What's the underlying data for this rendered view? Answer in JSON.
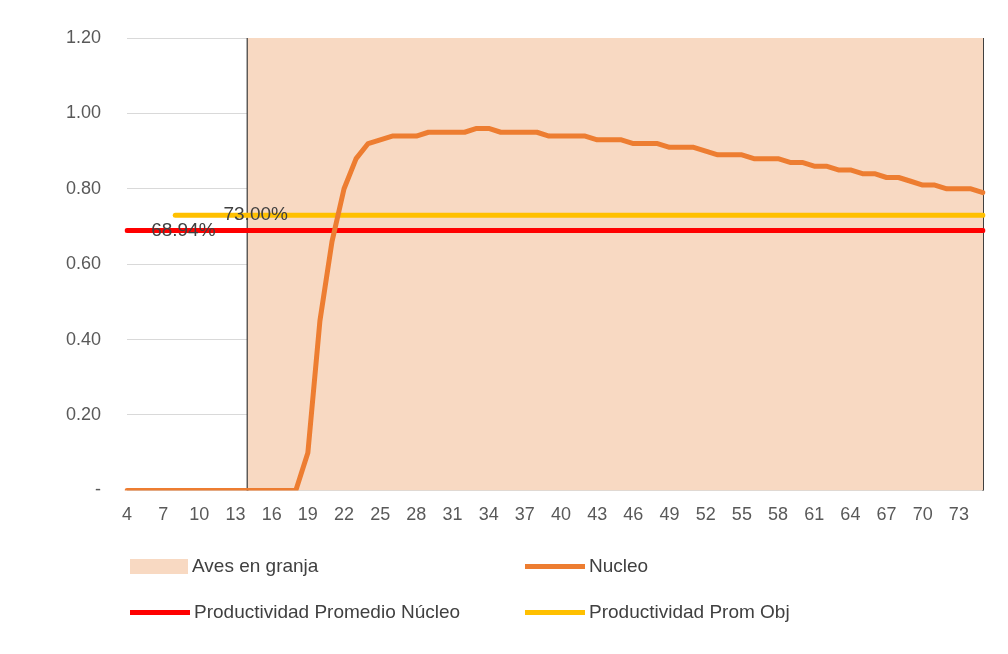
{
  "chart_data": {
    "type": "line",
    "categories": [
      "4",
      null,
      null,
      "7",
      null,
      null,
      "10",
      null,
      null,
      "13",
      null,
      null,
      "16",
      null,
      null,
      "19",
      null,
      null,
      "22",
      null,
      null,
      "25",
      null,
      null,
      "28",
      null,
      null,
      "31",
      null,
      null,
      "34",
      null,
      null,
      "37",
      null,
      null,
      "40",
      null,
      null,
      "43",
      null,
      null,
      "46",
      null,
      null,
      "49",
      null,
      null,
      "52",
      null,
      null,
      "55",
      null,
      null,
      "58",
      null,
      null,
      "61",
      null,
      null,
      "64",
      null,
      null,
      "67",
      null,
      null,
      "70",
      null,
      null,
      "73",
      null,
      null
    ],
    "series": [
      {
        "name": "Aves en granja",
        "type": "area",
        "color": "#f8d9c2",
        "values": [
          null,
          null,
          null,
          null,
          null,
          null,
          null,
          null,
          null,
          null,
          1.2,
          1.2,
          1.2,
          1.2,
          1.2,
          1.2,
          1.2,
          1.2,
          1.2,
          1.2,
          1.2,
          1.2,
          1.2,
          1.2,
          1.2,
          1.2,
          1.2,
          1.2,
          1.2,
          1.2,
          1.2,
          1.2,
          1.2,
          1.2,
          1.2,
          1.2,
          1.2,
          1.2,
          1.2,
          1.2,
          1.2,
          1.2,
          1.2,
          1.2,
          1.2,
          1.2,
          1.2,
          1.2,
          1.2,
          1.2,
          1.2,
          1.2,
          1.2,
          1.2,
          1.2,
          1.2,
          1.2,
          1.2,
          1.2,
          1.2,
          1.2,
          1.2,
          1.2,
          1.2,
          1.2,
          1.2,
          1.2,
          1.2,
          1.2,
          1.2,
          1.2,
          1.2
        ]
      },
      {
        "name": "Nucleo",
        "color": "#ed7d31",
        "values": [
          0,
          0,
          0,
          0,
          0,
          0,
          0,
          0,
          0,
          0,
          0,
          0,
          0,
          0,
          0,
          0.1,
          0.45,
          0.66,
          0.8,
          0.88,
          0.92,
          0.93,
          0.94,
          0.94,
          0.94,
          0.95,
          0.95,
          0.95,
          0.95,
          0.96,
          0.96,
          0.95,
          0.95,
          0.95,
          0.95,
          0.94,
          0.94,
          0.94,
          0.94,
          0.93,
          0.93,
          0.93,
          0.92,
          0.92,
          0.92,
          0.91,
          0.91,
          0.91,
          0.9,
          0.89,
          0.89,
          0.89,
          0.88,
          0.88,
          0.88,
          0.87,
          0.87,
          0.86,
          0.86,
          0.85,
          0.85,
          0.84,
          0.84,
          0.83,
          0.83,
          0.82,
          0.81,
          0.81,
          0.8,
          0.8,
          0.8,
          0.79
        ]
      },
      {
        "name": "Productividad Promedio Núcleo",
        "color": "#ff0000",
        "values": [
          0.6894,
          0.6894,
          0.6894,
          0.6894,
          0.6894,
          0.6894,
          0.6894,
          0.6894,
          0.6894,
          0.6894,
          0.6894,
          0.6894,
          0.6894,
          0.6894,
          0.6894,
          0.6894,
          0.6894,
          0.6894,
          0.6894,
          0.6894,
          0.6894,
          0.6894,
          0.6894,
          0.6894,
          0.6894,
          0.6894,
          0.6894,
          0.6894,
          0.6894,
          0.6894,
          0.6894,
          0.6894,
          0.6894,
          0.6894,
          0.6894,
          0.6894,
          0.6894,
          0.6894,
          0.6894,
          0.6894,
          0.6894,
          0.6894,
          0.6894,
          0.6894,
          0.6894,
          0.6894,
          0.6894,
          0.6894,
          0.6894,
          0.6894,
          0.6894,
          0.6894,
          0.6894,
          0.6894,
          0.6894,
          0.6894,
          0.6894,
          0.6894,
          0.6894,
          0.6894,
          0.6894,
          0.6894,
          0.6894,
          0.6894,
          0.6894,
          0.6894,
          0.6894,
          0.6894,
          0.6894,
          0.6894,
          0.6894,
          0.6894
        ],
        "value_labels": [
          null,
          null,
          "68.94%",
          null,
          null,
          null,
          null,
          null,
          null,
          null,
          null,
          null,
          null,
          null,
          null,
          null,
          null,
          null,
          null,
          null,
          null,
          null,
          null,
          null,
          null,
          null,
          null,
          null,
          null,
          null,
          null,
          null,
          null,
          null,
          null,
          null,
          null,
          null,
          null,
          null,
          null,
          null,
          null,
          null,
          null,
          null,
          null,
          null,
          null,
          null,
          null,
          null,
          null,
          null,
          null,
          null,
          null,
          null,
          null,
          null,
          null,
          null,
          null,
          null,
          null,
          null,
          null,
          null,
          null,
          null,
          null,
          null
        ]
      },
      {
        "name": "Productividad Prom Obj",
        "color": "#ffc000",
        "values": [
          null,
          null,
          null,
          null,
          0.73,
          0.73,
          0.73,
          0.73,
          0.73,
          0.73,
          0.73,
          0.73,
          0.73,
          0.73,
          0.73,
          0.73,
          0.73,
          0.73,
          0.73,
          0.73,
          0.73,
          0.73,
          0.73,
          0.73,
          0.73,
          0.73,
          0.73,
          0.73,
          0.73,
          0.73,
          0.73,
          0.73,
          0.73,
          0.73,
          0.73,
          0.73,
          0.73,
          0.73,
          0.73,
          0.73,
          0.73,
          0.73,
          0.73,
          0.73,
          0.73,
          0.73,
          0.73,
          0.73,
          0.73,
          0.73,
          0.73,
          0.73,
          0.73,
          0.73,
          0.73,
          0.73,
          0.73,
          0.73,
          0.73,
          0.73,
          0.73,
          0.73,
          0.73,
          0.73,
          0.73,
          0.73,
          0.73,
          0.73,
          0.73,
          0.73,
          0.73,
          0.73
        ],
        "value_labels": [
          null,
          null,
          null,
          null,
          null,
          null,
          null,
          null,
          "73.00%",
          null,
          null,
          null,
          null,
          null,
          null,
          null,
          null,
          null,
          null,
          null,
          null,
          null,
          null,
          null,
          null,
          null,
          null,
          null,
          null,
          null,
          null,
          null,
          null,
          null,
          null,
          null,
          null,
          null,
          null,
          null,
          null,
          null,
          null,
          null,
          null,
          null,
          null,
          null,
          null,
          null,
          null,
          null,
          null,
          null,
          null,
          null,
          null,
          null,
          null,
          null,
          null,
          null,
          null,
          null,
          null,
          null,
          null,
          null,
          null,
          null,
          null,
          null
        ]
      }
    ],
    "ylim": [
      0,
      1.2
    ],
    "yticks": [
      {
        "value": 0,
        "label": "-"
      },
      {
        "value": 0.2,
        "label": "0.20"
      },
      {
        "value": 0.4,
        "label": "0.40"
      },
      {
        "value": 0.6,
        "label": "0.60"
      },
      {
        "value": 0.8,
        "label": "0.80"
      },
      {
        "value": 1.0,
        "label": "1.00"
      },
      {
        "value": 1.2,
        "label": "1.20"
      }
    ],
    "grid": "y",
    "legend": "bottom",
    "marker": "none"
  }
}
